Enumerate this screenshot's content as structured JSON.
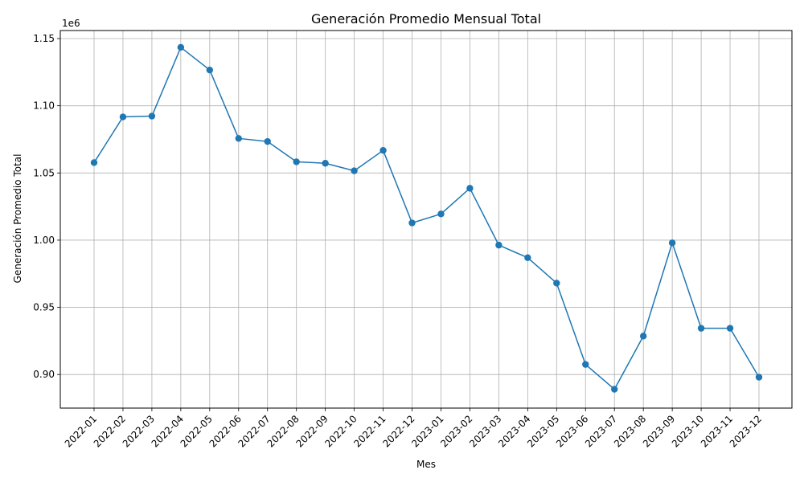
{
  "chart_data": {
    "type": "line",
    "title": "Generación Promedio Mensual Total",
    "xlabel": "Mes",
    "ylabel": "Generación Promedio Total",
    "y_offset_label": "1e6",
    "categories": [
      "2022-01",
      "2022-02",
      "2022-03",
      "2022-04",
      "2022-05",
      "2022-06",
      "2022-07",
      "2022-08",
      "2022-09",
      "2022-10",
      "2022-11",
      "2022-12",
      "2023-01",
      "2023-02",
      "2023-03",
      "2023-04",
      "2023-05",
      "2023-06",
      "2023-07",
      "2023-08",
      "2023-09",
      "2023-10",
      "2023-11",
      "2023-12"
    ],
    "series": [
      {
        "values": [
          1057700,
          1091700,
          1092300,
          1143500,
          1126600,
          1075700,
          1073400,
          1058300,
          1057200,
          1051600,
          1066800,
          1012800,
          1019500,
          1038600,
          996300,
          986900,
          968000,
          907500,
          889000,
          928600,
          998000,
          934400,
          934400,
          898000
        ],
        "color": "#1f77b4",
        "marker": "circle"
      }
    ],
    "ylim": [
      875000,
      1156000
    ],
    "yticks": [
      900000,
      950000,
      1000000,
      1050000,
      1100000,
      1150000
    ],
    "ytick_labels": [
      "0.90",
      "0.95",
      "1.00",
      "1.05",
      "1.10",
      "1.15"
    ],
    "grid": true,
    "x_tick_rotation_deg": 45
  }
}
